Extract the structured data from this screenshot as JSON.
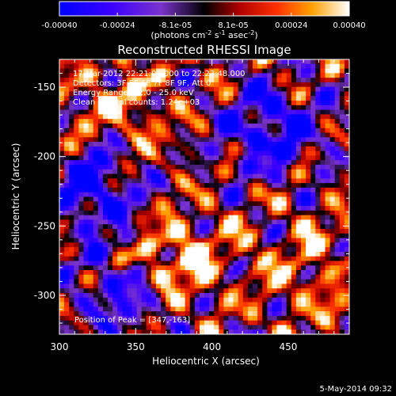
{
  "chart_data": {
    "type": "heatmap",
    "title": "Reconstructed RHESSI Image",
    "xlabel": "Heliocentric X (arcsec)",
    "ylabel": "Heliocentric Y (arcsec)",
    "xlim": [
      300,
      490
    ],
    "ylim": [
      -328,
      -130
    ],
    "x_ticks": [
      300,
      350,
      400,
      450
    ],
    "y_ticks": [
      -150,
      -200,
      -250,
      -300
    ],
    "colorbar": {
      "ticks": [
        "-0.00040",
        "-0.00024",
        "-8.1e-05",
        "8.1e-05",
        "0.00024",
        "0.00040"
      ],
      "range": [
        -0.0004,
        0.0004
      ],
      "unit_label": "(photons cm",
      "unit_exp1": "-2",
      "unit_mid": " s",
      "unit_exp2": "-1",
      "unit_mid2": " asec",
      "unit_exp3": "-2",
      "unit_end": ")"
    },
    "annotations": {
      "time": "17-Mar-2012 22:21:08.000 to 22:23:48.000",
      "detectors": "Detectors: 3F 5F 6F 7F 8F 9F, Att 0",
      "energy": "Energy Range: 12.0 - 25.0 keV",
      "counts": "Clean     Total counts: 1.24e+03",
      "peak": "Position of Peak = [347,-163]"
    },
    "grid": false
  },
  "footer": {
    "date": "5-May-2014 09:32"
  }
}
